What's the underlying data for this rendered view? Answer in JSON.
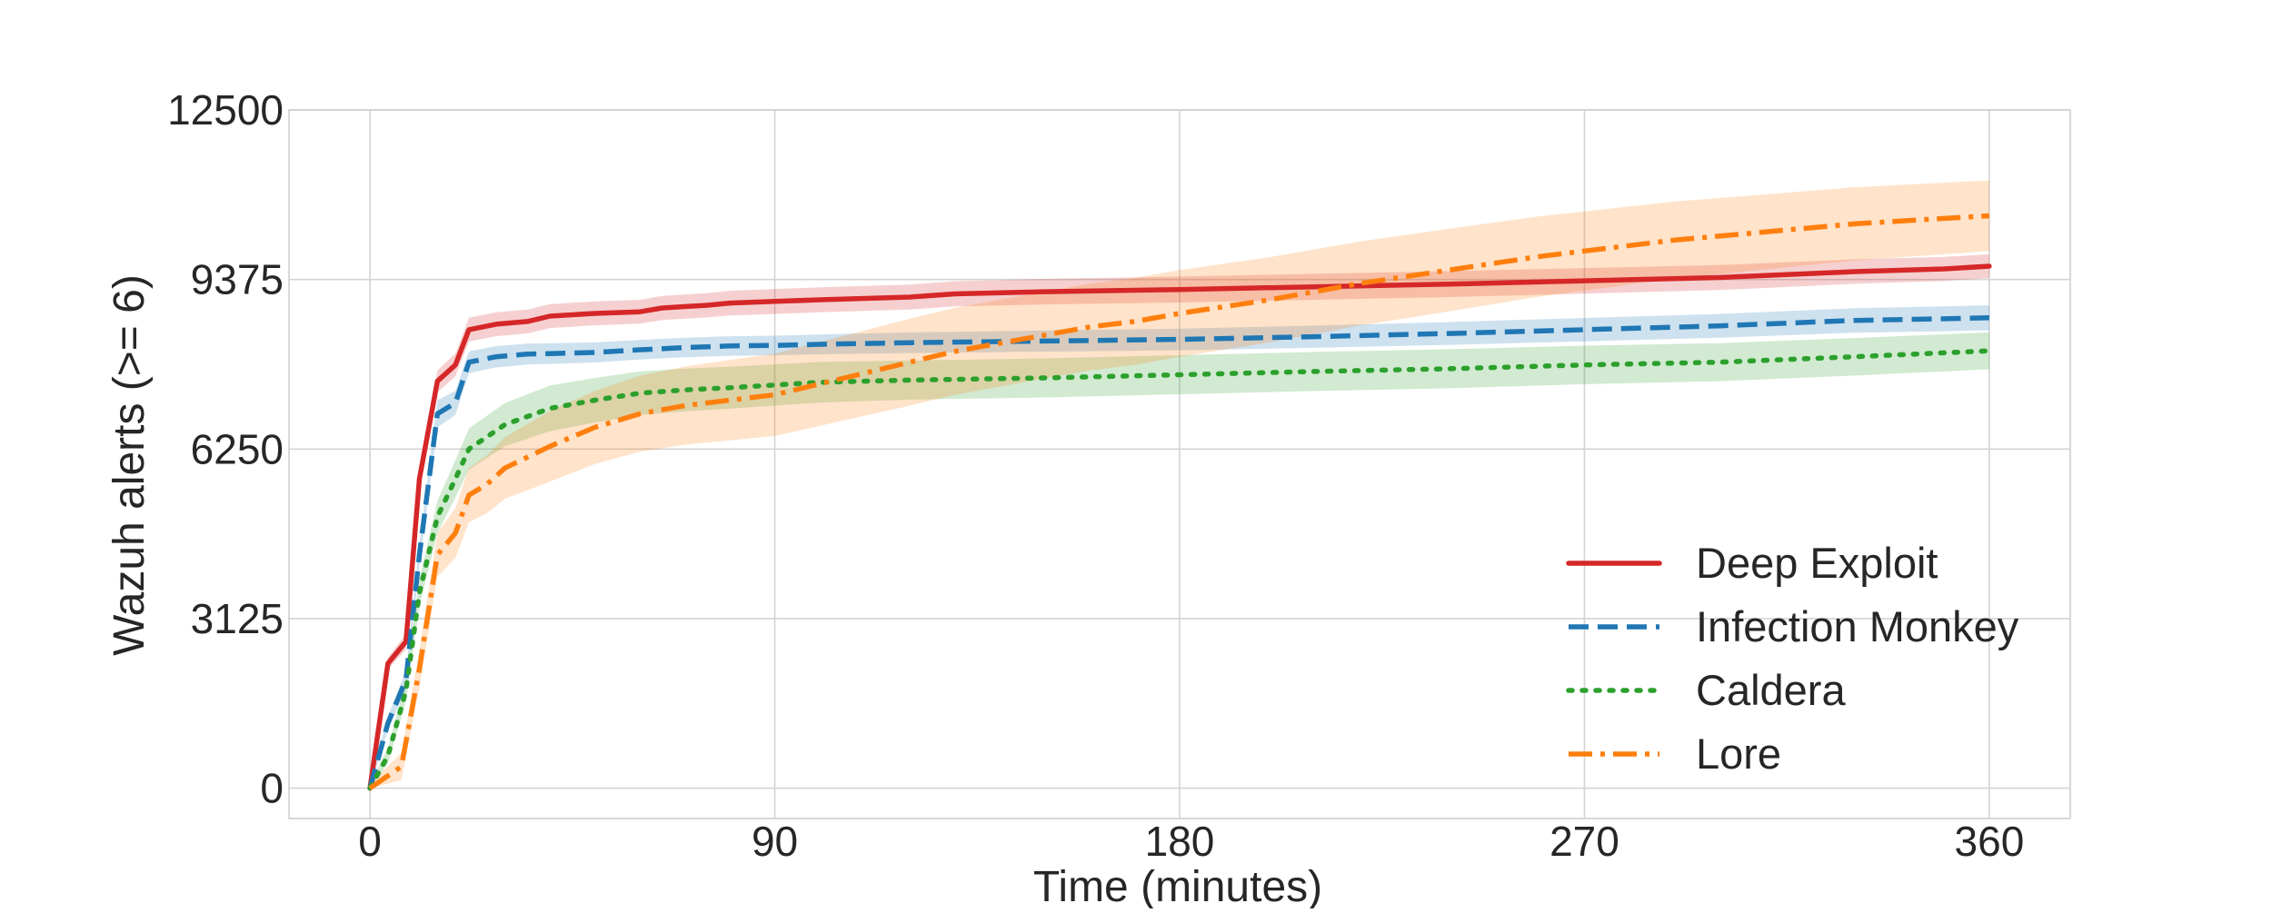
{
  "chart_data": {
    "type": "line",
    "xlabel": "Time (minutes)",
    "ylabel": "Wazuh alerts (>= 6)",
    "xlim": [
      -18,
      378
    ],
    "ylim": [
      -560,
      12500
    ],
    "xticks": [
      0,
      90,
      180,
      270,
      360
    ],
    "yticks": [
      0,
      3125,
      6250,
      9375,
      12500
    ],
    "xtick_labels": [
      "0",
      "90",
      "180",
      "270",
      "360"
    ],
    "ytick_labels": [
      "0",
      "3125",
      "6250",
      "9375",
      "12500"
    ],
    "grid": true,
    "legend_position": "lower-right",
    "series": [
      {
        "name": "Deep Exploit",
        "color": "#d62728",
        "linestyle": "solid",
        "points": [
          [
            0,
            0
          ],
          [
            4,
            2300
          ],
          [
            8,
            2700
          ],
          [
            11,
            5700
          ],
          [
            15,
            7500
          ],
          [
            19,
            7800
          ],
          [
            22,
            8450
          ],
          [
            28,
            8550
          ],
          [
            35,
            8600
          ],
          [
            40,
            8700
          ],
          [
            50,
            8750
          ],
          [
            60,
            8780
          ],
          [
            65,
            8850
          ],
          [
            75,
            8900
          ],
          [
            80,
            8940
          ],
          [
            90,
            8970
          ],
          [
            100,
            9000
          ],
          [
            120,
            9050
          ],
          [
            130,
            9110
          ],
          [
            150,
            9150
          ],
          [
            180,
            9190
          ],
          [
            210,
            9240
          ],
          [
            240,
            9290
          ],
          [
            270,
            9350
          ],
          [
            300,
            9410
          ],
          [
            330,
            9520
          ],
          [
            350,
            9570
          ],
          [
            360,
            9620
          ]
        ],
        "band": [
          [
            0,
            80
          ],
          [
            15,
            200
          ],
          [
            22,
            220
          ],
          [
            60,
            220
          ],
          [
            90,
            230
          ],
          [
            120,
            230
          ],
          [
            180,
            240
          ],
          [
            240,
            240
          ],
          [
            300,
            230
          ],
          [
            360,
            220
          ]
        ]
      },
      {
        "name": "Infection Monkey",
        "color": "#1f77b4",
        "linestyle": "dashed",
        "points": [
          [
            0,
            0
          ],
          [
            4,
            1200
          ],
          [
            8,
            2000
          ],
          [
            11,
            4300
          ],
          [
            15,
            6900
          ],
          [
            19,
            7100
          ],
          [
            22,
            7850
          ],
          [
            28,
            7950
          ],
          [
            35,
            8000
          ],
          [
            50,
            8030
          ],
          [
            60,
            8080
          ],
          [
            70,
            8120
          ],
          [
            80,
            8150
          ],
          [
            90,
            8160
          ],
          [
            100,
            8180
          ],
          [
            120,
            8210
          ],
          [
            150,
            8240
          ],
          [
            180,
            8270
          ],
          [
            210,
            8320
          ],
          [
            240,
            8380
          ],
          [
            270,
            8450
          ],
          [
            300,
            8520
          ],
          [
            330,
            8620
          ],
          [
            350,
            8650
          ],
          [
            360,
            8670
          ]
        ],
        "band": [
          [
            0,
            80
          ],
          [
            15,
            250
          ],
          [
            22,
            200
          ],
          [
            60,
            180
          ],
          [
            90,
            180
          ],
          [
            120,
            190
          ],
          [
            180,
            200
          ],
          [
            240,
            210
          ],
          [
            300,
            220
          ],
          [
            360,
            230
          ]
        ]
      },
      {
        "name": "Caldera",
        "color": "#2ca02c",
        "linestyle": "dotted",
        "points": [
          [
            0,
            0
          ],
          [
            4,
            600
          ],
          [
            8,
            1800
          ],
          [
            11,
            3600
          ],
          [
            15,
            5000
          ],
          [
            19,
            5700
          ],
          [
            22,
            6250
          ],
          [
            30,
            6700
          ],
          [
            40,
            7000
          ],
          [
            50,
            7150
          ],
          [
            60,
            7280
          ],
          [
            70,
            7340
          ],
          [
            80,
            7380
          ],
          [
            90,
            7430
          ],
          [
            100,
            7480
          ],
          [
            120,
            7520
          ],
          [
            150,
            7560
          ],
          [
            180,
            7620
          ],
          [
            210,
            7680
          ],
          [
            240,
            7730
          ],
          [
            270,
            7800
          ],
          [
            300,
            7850
          ],
          [
            330,
            7950
          ],
          [
            360,
            8060
          ]
        ],
        "band": [
          [
            0,
            80
          ],
          [
            11,
            250
          ],
          [
            22,
            380
          ],
          [
            40,
            420
          ],
          [
            60,
            400
          ],
          [
            90,
            380
          ],
          [
            120,
            360
          ],
          [
            180,
            360
          ],
          [
            240,
            360
          ],
          [
            300,
            350
          ],
          [
            360,
            340
          ]
        ]
      },
      {
        "name": "Lore",
        "color": "#ff7f0e",
        "linestyle": "dashdot",
        "points": [
          [
            0,
            0
          ],
          [
            7,
            400
          ],
          [
            11,
            2200
          ],
          [
            15,
            4300
          ],
          [
            19,
            4700
          ],
          [
            22,
            5400
          ],
          [
            26,
            5600
          ],
          [
            30,
            5900
          ],
          [
            40,
            6300
          ],
          [
            50,
            6650
          ],
          [
            60,
            6900
          ],
          [
            70,
            7050
          ],
          [
            80,
            7150
          ],
          [
            90,
            7250
          ],
          [
            100,
            7450
          ],
          [
            110,
            7650
          ],
          [
            120,
            7850
          ],
          [
            130,
            8050
          ],
          [
            140,
            8200
          ],
          [
            150,
            8350
          ],
          [
            160,
            8500
          ],
          [
            170,
            8600
          ],
          [
            180,
            8750
          ],
          [
            200,
            9000
          ],
          [
            220,
            9300
          ],
          [
            240,
            9550
          ],
          [
            260,
            9800
          ],
          [
            270,
            9900
          ],
          [
            290,
            10100
          ],
          [
            310,
            10250
          ],
          [
            330,
            10400
          ],
          [
            350,
            10500
          ],
          [
            360,
            10550
          ]
        ],
        "band": [
          [
            0,
            80
          ],
          [
            11,
            350
          ],
          [
            22,
            500
          ],
          [
            40,
            650
          ],
          [
            60,
            700
          ],
          [
            90,
            760
          ],
          [
            120,
            800
          ],
          [
            180,
            800
          ],
          [
            240,
            760
          ],
          [
            300,
            700
          ],
          [
            360,
            650
          ]
        ]
      }
    ]
  }
}
